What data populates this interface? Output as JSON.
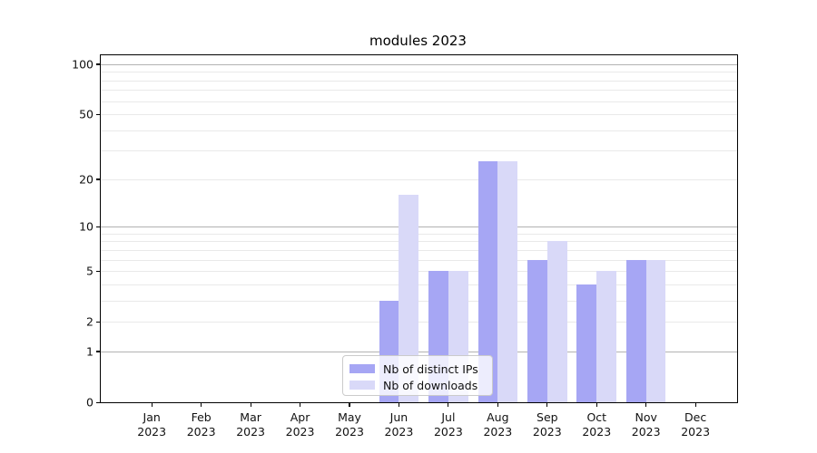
{
  "title": "modules 2023",
  "chart_data": {
    "type": "bar",
    "title": "modules 2023",
    "categories": [
      "Jan 2023",
      "Feb 2023",
      "Mar 2023",
      "Apr 2023",
      "May 2023",
      "Jun 2023",
      "Jul 2023",
      "Aug 2023",
      "Sep 2023",
      "Oct 2023",
      "Nov 2023",
      "Dec 2023"
    ],
    "x_tick_months": [
      "Jan",
      "Feb",
      "Mar",
      "Apr",
      "May",
      "Jun",
      "Jul",
      "Aug",
      "Sep",
      "Oct",
      "Nov",
      "Dec"
    ],
    "x_tick_year": "2023",
    "series": [
      {
        "name": "Nb of distinct IPs",
        "color": "#a6a6f4",
        "values": [
          0,
          0,
          0,
          0,
          0,
          3,
          5,
          26,
          6,
          4,
          6,
          0
        ]
      },
      {
        "name": "Nb of downloads",
        "color": "#d9d9f8",
        "values": [
          0,
          0,
          0,
          0,
          0,
          16,
          5,
          26,
          8,
          5,
          6,
          0
        ]
      }
    ],
    "scale": "log1p",
    "ylim": [
      0,
      113.3
    ],
    "ytick_values": [
      0,
      1,
      2,
      5,
      10,
      20,
      50,
      100
    ],
    "ytick_labels": [
      "0",
      "1",
      "2",
      "5",
      "10",
      "20",
      "50",
      "100"
    ],
    "major_gridlines": [
      1,
      10,
      100
    ],
    "minor_gridlines": [
      2,
      3,
      4,
      5,
      6,
      7,
      8,
      9,
      20,
      30,
      40,
      50,
      60,
      70,
      80,
      90
    ],
    "grid": true,
    "legend_position": "bottom-center"
  },
  "legend": {
    "items": [
      {
        "label": "Nb of distinct IPs",
        "color": "#a6a6f4"
      },
      {
        "label": "Nb of downloads",
        "color": "#d9d9f8"
      }
    ]
  },
  "colors": {
    "background": "#ffffff",
    "spine": "#000000",
    "major_grid": "#b2b2b2",
    "minor_grid": "#e9e9e9",
    "tick_text": "#111111"
  }
}
